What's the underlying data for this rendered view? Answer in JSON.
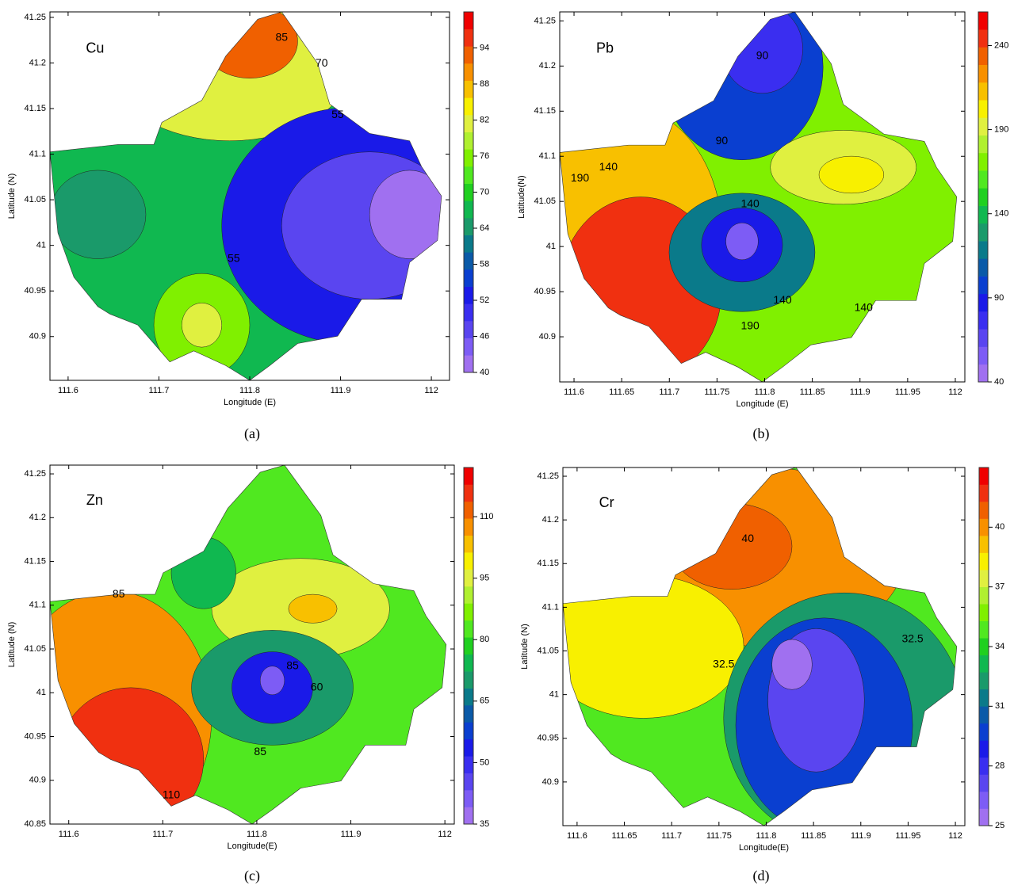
{
  "colormap": [
    "#a070f0",
    "#7d5cf5",
    "#5a45f0",
    "#3a2ef0",
    "#1a1ae8",
    "#0a3fd0",
    "#0a5aa8",
    "#0a7a8a",
    "#1a9a6a",
    "#10b850",
    "#20d020",
    "#50e820",
    "#80f000",
    "#b0f030",
    "#e0f040",
    "#f8f000",
    "#f8c000",
    "#f89000",
    "#f06000",
    "#f03010",
    "#f00000"
  ],
  "chart_data": [
    {
      "type": "contour",
      "element": "Cu",
      "caption": "(a)",
      "xlabel": "Longitude (E)",
      "ylabel": "Latitude (N)",
      "xlim": [
        111.58,
        112.02
      ],
      "ylim": [
        40.852,
        41.256
      ],
      "xticks": [
        111.6,
        111.7,
        111.8,
        111.9,
        112
      ],
      "yticks": [
        40.9,
        40.95,
        41,
        41.05,
        41.1,
        41.15,
        41.2,
        41.25
      ],
      "clim": [
        40,
        100
      ],
      "cticks": [
        40,
        46,
        52,
        58,
        64,
        70,
        76,
        82,
        88,
        94
      ],
      "contour_labels": [
        85,
        70,
        55,
        55
      ]
    },
    {
      "type": "contour",
      "element": "Pb",
      "caption": "(b)",
      "xlabel": "Longitude (E)",
      "ylabel": "Latitude(N)",
      "xlim": [
        111.585,
        112.01
      ],
      "ylim": [
        40.85,
        41.26
      ],
      "xticks": [
        111.6,
        111.65,
        111.7,
        111.75,
        111.8,
        111.85,
        111.9,
        111.95,
        112
      ],
      "yticks": [
        40.9,
        40.95,
        41,
        41.05,
        41.1,
        41.15,
        41.2,
        41.25
      ],
      "clim": [
        40,
        260
      ],
      "cticks": [
        40,
        90,
        140,
        190,
        240
      ],
      "contour_labels": [
        90,
        90,
        140,
        190,
        140,
        140,
        140,
        190
      ]
    },
    {
      "type": "contour",
      "element": "Zn",
      "caption": "(c)",
      "xlabel": "Longitude(E)",
      "ylabel": "Latitude (N)",
      "xlim": [
        111.58,
        112.01
      ],
      "ylim": [
        40.85,
        41.26
      ],
      "xticks": [
        111.6,
        111.7,
        111.8,
        111.9,
        112
      ],
      "yticks": [
        40.85,
        40.9,
        40.95,
        41,
        41.05,
        41.1,
        41.15,
        41.2,
        41.25
      ],
      "clim": [
        35,
        122
      ],
      "cticks": [
        35,
        50,
        65,
        80,
        95,
        110
      ],
      "contour_labels": [
        85,
        85,
        60,
        85,
        110
      ]
    },
    {
      "type": "contour",
      "element": "Cr",
      "caption": "(d)",
      "xlabel": "Longitude(E)",
      "ylabel": "Latitude (N)",
      "xlim": [
        111.585,
        112.01
      ],
      "ylim": [
        40.85,
        41.26
      ],
      "xticks": [
        111.6,
        111.65,
        111.7,
        111.75,
        111.8,
        111.85,
        111.9,
        111.95,
        112
      ],
      "yticks": [
        40.9,
        40.95,
        41,
        41.05,
        41.1,
        41.15,
        41.2,
        41.25
      ],
      "clim": [
        25,
        43
      ],
      "cticks": [
        25,
        28,
        31,
        34,
        37,
        40
      ],
      "contour_labels": [
        40,
        32.5,
        32.5
      ]
    }
  ]
}
